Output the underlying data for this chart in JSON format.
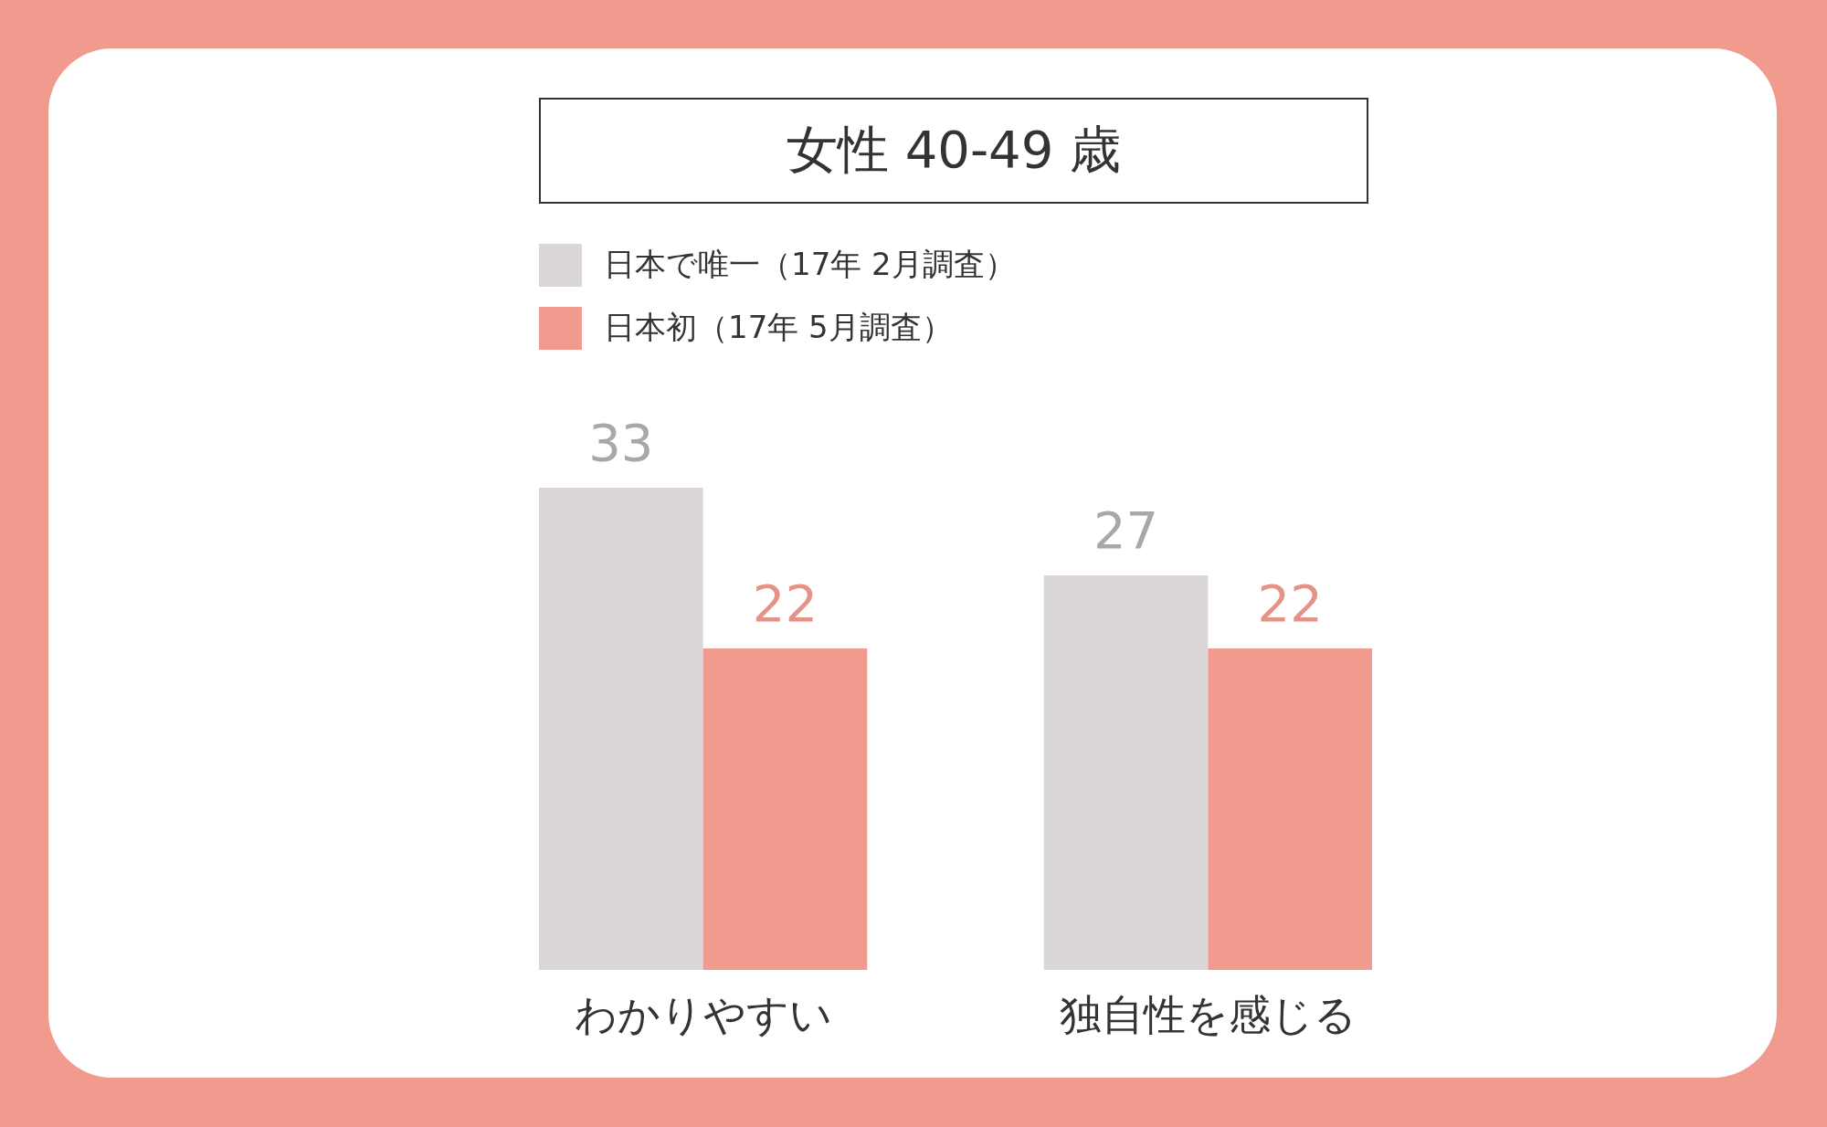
{
  "chart_data": {
    "type": "bar",
    "title": "女性 40-49 歳",
    "categories": [
      "わかりやすい",
      "独自性を感じる"
    ],
    "series": [
      {
        "name": "日本で唯一（17年 2月調査）",
        "color": "#dbd6d8",
        "values": [
          33,
          27
        ]
      },
      {
        "name": "日本初（17年 5月調査）",
        "color": "#f19b8f",
        "values": [
          22,
          22
        ]
      }
    ],
    "data_labels": true,
    "legend": "top left"
  }
}
